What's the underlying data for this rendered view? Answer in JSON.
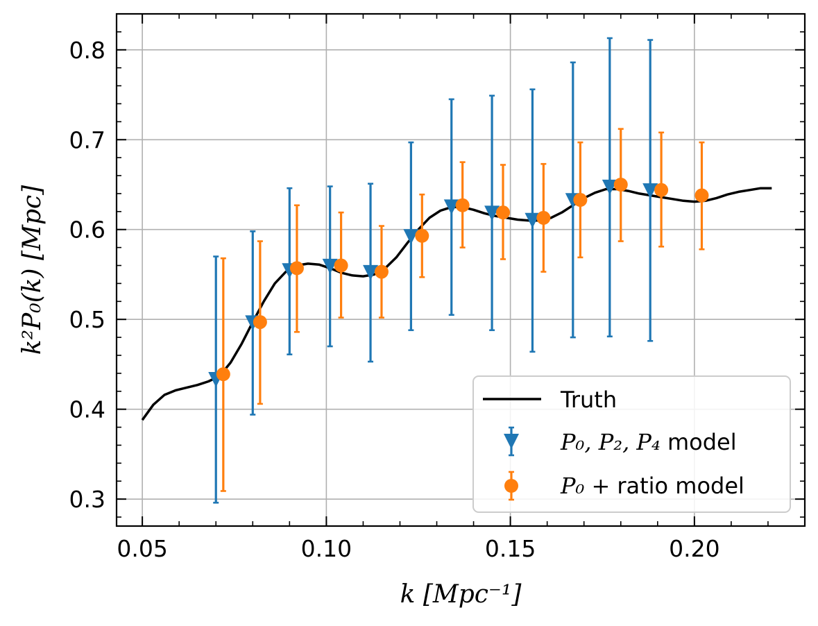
{
  "chart_data": {
    "type": "scatter",
    "xlabel": "k  [Mpc⁻¹]",
    "ylabel": "k²P₀(k)  [Mpc]",
    "xlim": [
      0.043,
      0.23
    ],
    "ylim": [
      0.27,
      0.84
    ],
    "grid": true,
    "legend_position": "bottom-right",
    "x_ticks": [
      0.05,
      0.1,
      0.15,
      0.2
    ],
    "x_tick_labels": [
      "0.05",
      "0.10",
      "0.15",
      "0.20"
    ],
    "y_ticks": [
      0.3,
      0.4,
      0.5,
      0.6,
      0.7,
      0.8
    ],
    "y_tick_labels": [
      "0.3",
      "0.4",
      "0.5",
      "0.6",
      "0.7",
      "0.8"
    ],
    "truth": {
      "name": "Truth",
      "color": "#000000",
      "x": [
        0.05,
        0.053,
        0.056,
        0.059,
        0.062,
        0.065,
        0.068,
        0.071,
        0.074,
        0.077,
        0.08,
        0.083,
        0.086,
        0.089,
        0.092,
        0.095,
        0.098,
        0.101,
        0.104,
        0.107,
        0.11,
        0.113,
        0.116,
        0.119,
        0.122,
        0.125,
        0.128,
        0.131,
        0.134,
        0.137,
        0.14,
        0.143,
        0.146,
        0.149,
        0.152,
        0.155,
        0.158,
        0.161,
        0.164,
        0.167,
        0.17,
        0.173,
        0.176,
        0.179,
        0.182,
        0.185,
        0.188,
        0.191,
        0.194,
        0.197,
        0.2,
        0.203,
        0.206,
        0.209,
        0.212,
        0.215,
        0.218,
        0.221
      ],
      "y": [
        0.388,
        0.405,
        0.416,
        0.421,
        0.424,
        0.427,
        0.431,
        0.437,
        0.452,
        0.473,
        0.497,
        0.52,
        0.54,
        0.553,
        0.56,
        0.562,
        0.561,
        0.557,
        0.552,
        0.549,
        0.548,
        0.55,
        0.557,
        0.569,
        0.585,
        0.6,
        0.613,
        0.621,
        0.625,
        0.625,
        0.622,
        0.618,
        0.615,
        0.613,
        0.611,
        0.61,
        0.61,
        0.613,
        0.619,
        0.627,
        0.635,
        0.641,
        0.645,
        0.645,
        0.643,
        0.64,
        0.638,
        0.636,
        0.634,
        0.632,
        0.631,
        0.632,
        0.635,
        0.639,
        0.642,
        0.644,
        0.646,
        0.646
      ]
    },
    "series": [
      {
        "name": "P₀, P₂, P₄ model",
        "legend_math": "P₀, P₂, P₄",
        "legend_text": " model",
        "color": "#1f77b4",
        "marker": "triangle-down",
        "x": [
          0.07,
          0.08,
          0.09,
          0.101,
          0.112,
          0.123,
          0.134,
          0.145,
          0.156,
          0.167,
          0.177,
          0.188
        ],
        "y": [
          0.433,
          0.496,
          0.554,
          0.559,
          0.552,
          0.592,
          0.625,
          0.618,
          0.61,
          0.632,
          0.647,
          0.643
        ],
        "err_low": [
          0.296,
          0.394,
          0.461,
          0.47,
          0.453,
          0.488,
          0.505,
          0.488,
          0.464,
          0.48,
          0.481,
          0.476
        ],
        "err_high": [
          0.57,
          0.598,
          0.646,
          0.648,
          0.651,
          0.697,
          0.745,
          0.749,
          0.756,
          0.786,
          0.813,
          0.811
        ]
      },
      {
        "name": "P₀ + ratio model",
        "legend_math": "P₀ +",
        "legend_text": "ratio model",
        "color": "#ff7f0e",
        "marker": "circle",
        "x": [
          0.072,
          0.082,
          0.092,
          0.104,
          0.115,
          0.126,
          0.137,
          0.148,
          0.159,
          0.169,
          0.18,
          0.191,
          0.202
        ],
        "y": [
          0.439,
          0.497,
          0.557,
          0.56,
          0.553,
          0.593,
          0.627,
          0.619,
          0.613,
          0.633,
          0.65,
          0.644,
          0.638
        ],
        "err_low": [
          0.309,
          0.406,
          0.486,
          0.502,
          0.502,
          0.547,
          0.58,
          0.567,
          0.553,
          0.569,
          0.587,
          0.581,
          0.578
        ],
        "err_high": [
          0.568,
          0.587,
          0.627,
          0.619,
          0.604,
          0.639,
          0.675,
          0.672,
          0.673,
          0.697,
          0.712,
          0.708,
          0.697
        ]
      }
    ]
  }
}
